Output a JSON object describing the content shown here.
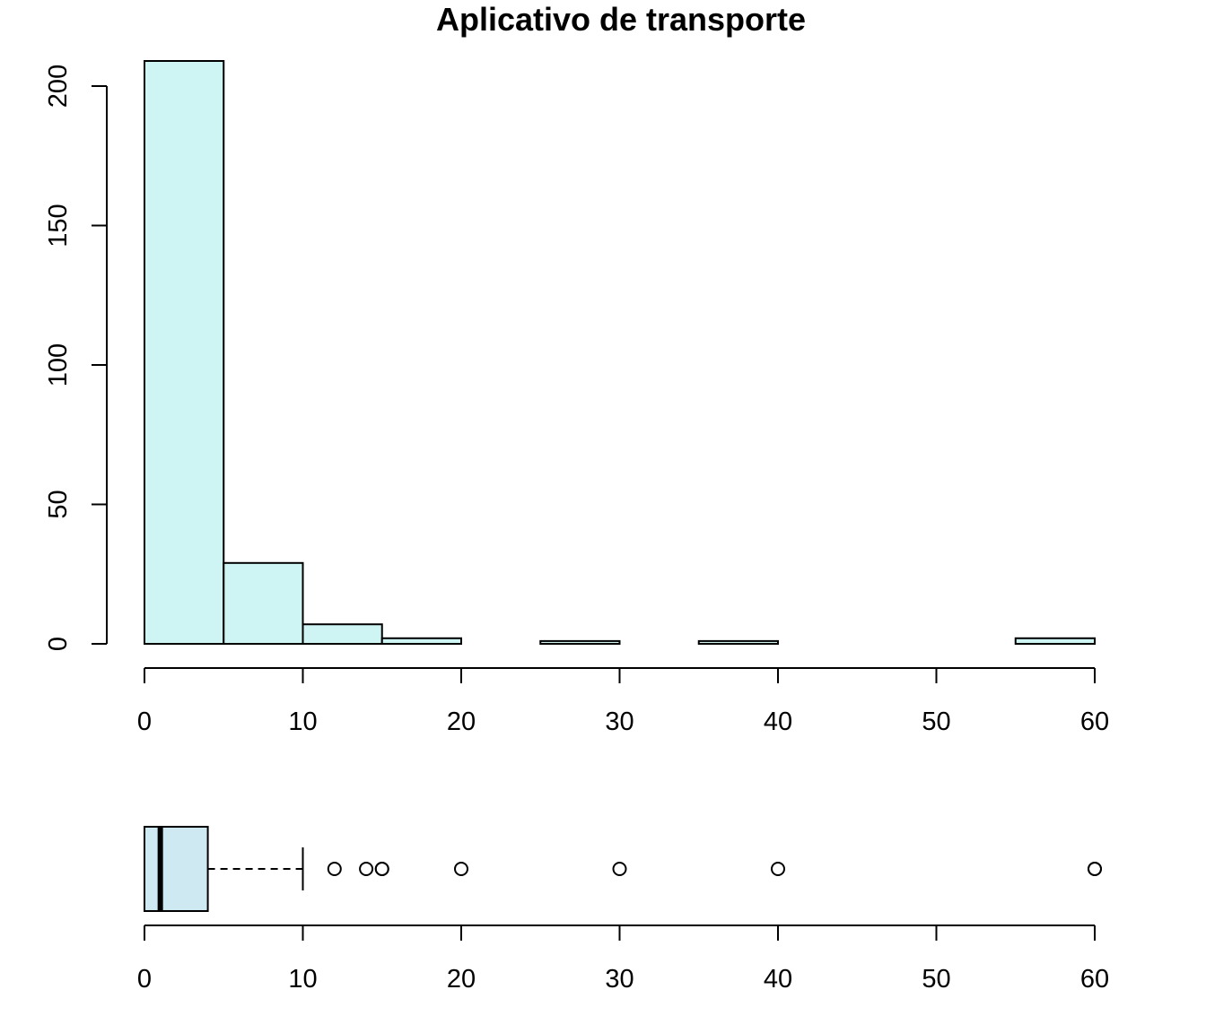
{
  "chart_data": [
    {
      "type": "bar",
      "subtype": "histogram",
      "title": "Aplicativo de transporte",
      "xlabel": "",
      "ylabel": "",
      "bins": [
        {
          "from": 0,
          "to": 5,
          "count": 209
        },
        {
          "from": 5,
          "to": 10,
          "count": 29
        },
        {
          "from": 10,
          "to": 15,
          "count": 7
        },
        {
          "from": 15,
          "to": 20,
          "count": 2
        },
        {
          "from": 20,
          "to": 25,
          "count": 0
        },
        {
          "from": 25,
          "to": 30,
          "count": 1
        },
        {
          "from": 30,
          "to": 35,
          "count": 0
        },
        {
          "from": 35,
          "to": 40,
          "count": 1
        },
        {
          "from": 40,
          "to": 45,
          "count": 0
        },
        {
          "from": 45,
          "to": 50,
          "count": 0
        },
        {
          "from": 50,
          "to": 55,
          "count": 0
        },
        {
          "from": 55,
          "to": 60,
          "count": 2
        }
      ],
      "xlim": [
        0,
        60
      ],
      "ylim": [
        0,
        209
      ],
      "xticks": [
        "0",
        "10",
        "20",
        "30",
        "40",
        "50",
        "60"
      ],
      "yticks": [
        "0",
        "50",
        "100",
        "150",
        "200"
      ],
      "bar_color": "#cef4f4",
      "grid": false
    },
    {
      "type": "boxplot",
      "orientation": "horizontal",
      "min_whisker": 0,
      "q1": 0,
      "median": 1,
      "q3": 4,
      "max_whisker": 10,
      "outliers": [
        12,
        14,
        15,
        15,
        20,
        30,
        40,
        60,
        60
      ],
      "xlim": [
        0,
        60
      ],
      "xticks": [
        "0",
        "10",
        "20",
        "30",
        "40",
        "50",
        "60"
      ],
      "box_color": "#cfe9f3"
    }
  ]
}
